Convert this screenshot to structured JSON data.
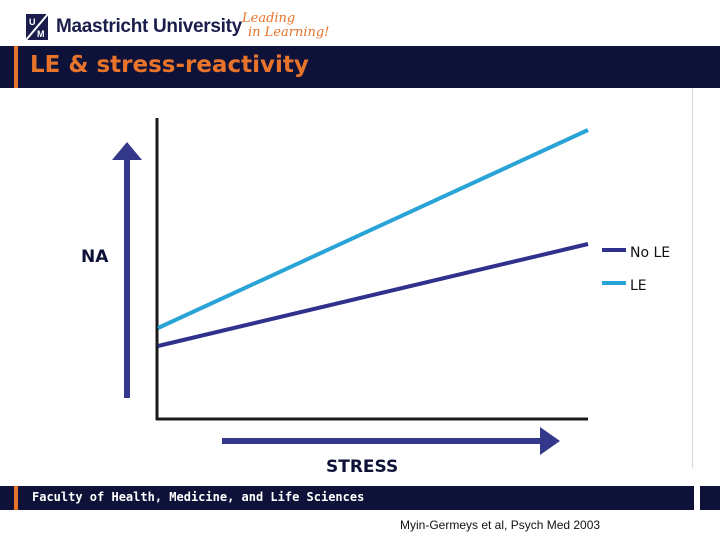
{
  "logo": {
    "name": "Maastricht University",
    "mark_letters": [
      "U",
      "M"
    ],
    "tagline_line1": "Leading",
    "tagline_line2": "in Learning!"
  },
  "slide": {
    "title": "LE & stress-reactivity",
    "footer": "Faculty of Health, Medicine, and Life Sciences",
    "citation": "Myin-Germeys et al, Psych Med 2003"
  },
  "colors": {
    "navy": "#0f1238",
    "orange": "#e8742c",
    "no_le_line": "#2f318c",
    "le_line": "#2aa3d6",
    "arrow": "#34388a"
  },
  "chart_data": {
    "type": "line",
    "title": "",
    "xlabel": "STRESS",
    "ylabel": "NA",
    "xlim": [
      0,
      1
    ],
    "ylim": [
      0,
      1
    ],
    "grid": false,
    "legend_position": "right",
    "series": [
      {
        "name": "No LE",
        "color": "#2f318c",
        "x": [
          0,
          1
        ],
        "y": [
          0.24,
          0.58
        ]
      },
      {
        "name": "LE",
        "color": "#2aa3d6",
        "x": [
          0,
          1
        ],
        "y": [
          0.3,
          0.96
        ]
      }
    ]
  }
}
